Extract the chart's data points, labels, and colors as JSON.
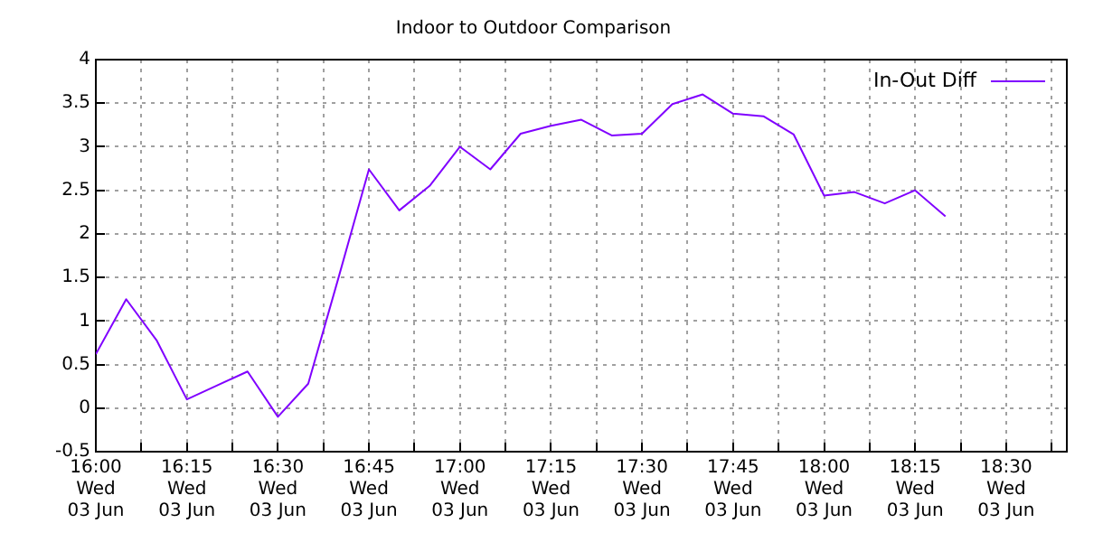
{
  "chart_data": {
    "type": "line",
    "title": "Indoor to Outdoor Comparison",
    "x": [
      "--06-03T16:00",
      "--06-03T16:05",
      "--06-03T16:10",
      "--06-03T16:15",
      "--06-03T16:20",
      "--06-03T16:25",
      "--06-03T16:30",
      "--06-03T16:35",
      "--06-03T16:40",
      "--06-03T16:45",
      "--06-03T16:50",
      "--06-03T16:55",
      "--06-03T17:00",
      "--06-03T17:05",
      "--06-03T17:10",
      "--06-03T17:15",
      "--06-03T17:20",
      "--06-03T17:25",
      "--06-03T17:30",
      "--06-03T17:35",
      "--06-03T17:40",
      "--06-03T17:45",
      "--06-03T17:50",
      "--06-03T17:55",
      "--06-03T18:00",
      "--06-03T18:05",
      "--06-03T18:10",
      "--06-03T18:15",
      "--06-03T18:20"
    ],
    "series": [
      {
        "name": "In-Out Diff",
        "color": "#8000ff",
        "values": [
          0.62,
          1.25,
          0.78,
          0.1,
          0.26,
          0.42,
          -0.1,
          0.28,
          1.5,
          2.74,
          2.27,
          2.55,
          3.0,
          2.74,
          3.15,
          3.24,
          3.31,
          3.13,
          3.15,
          3.49,
          3.6,
          3.38,
          3.35,
          3.14,
          2.44,
          2.48,
          2.35,
          2.5,
          2.2
        ]
      }
    ],
    "xlim": [
      "--06-03T16:00",
      "--06-03T18:40"
    ],
    "xticks": [
      {
        "value": "--06-03T16:00",
        "label": "16:00\nWed\n03 Jun"
      },
      {
        "value": "--06-03T16:07:30",
        "label": null
      },
      {
        "value": "--06-03T16:15",
        "label": "16:15\nWed\n03 Jun"
      },
      {
        "value": "--06-03T16:22:30",
        "label": null
      },
      {
        "value": "--06-03T16:30",
        "label": "16:30\nWed\n03 Jun"
      },
      {
        "value": "--06-03T16:37:30",
        "label": null
      },
      {
        "value": "--06-03T16:45",
        "label": "16:45\nWed\n03 Jun"
      },
      {
        "value": "--06-03T16:52:30",
        "label": null
      },
      {
        "value": "--06-03T17:00",
        "label": "17:00\nWed\n03 Jun"
      },
      {
        "value": "--06-03T17:07:30",
        "label": null
      },
      {
        "value": "--06-03T17:15",
        "label": "17:15\nWed\n03 Jun"
      },
      {
        "value": "--06-03T17:22:30",
        "label": null
      },
      {
        "value": "--06-03T17:30",
        "label": "17:30\nWed\n03 Jun"
      },
      {
        "value": "--06-03T17:37:30",
        "label": null
      },
      {
        "value": "--06-03T17:45",
        "label": "17:45\nWed\n03 Jun"
      },
      {
        "value": "--06-03T17:52:30",
        "label": null
      },
      {
        "value": "--06-03T18:00",
        "label": "18:00\nWed\n03 Jun"
      },
      {
        "value": "--06-03T18:07:30",
        "label": null
      },
      {
        "value": "--06-03T18:15",
        "label": "18:15\nWed\n03 Jun"
      },
      {
        "value": "--06-03T18:22:30",
        "label": null
      },
      {
        "value": "--06-03T18:30",
        "label": "18:30\nWed\n03 Jun"
      },
      {
        "value": "--06-03T18:37:30",
        "label": null
      }
    ],
    "ylim": [
      -0.5,
      4
    ],
    "yticks": [
      -0.5,
      0,
      0.5,
      1,
      1.5,
      2,
      2.5,
      3,
      3.5,
      4
    ],
    "grid": true,
    "legend": "top right",
    "marker": "none",
    "line_style": "solid"
  }
}
